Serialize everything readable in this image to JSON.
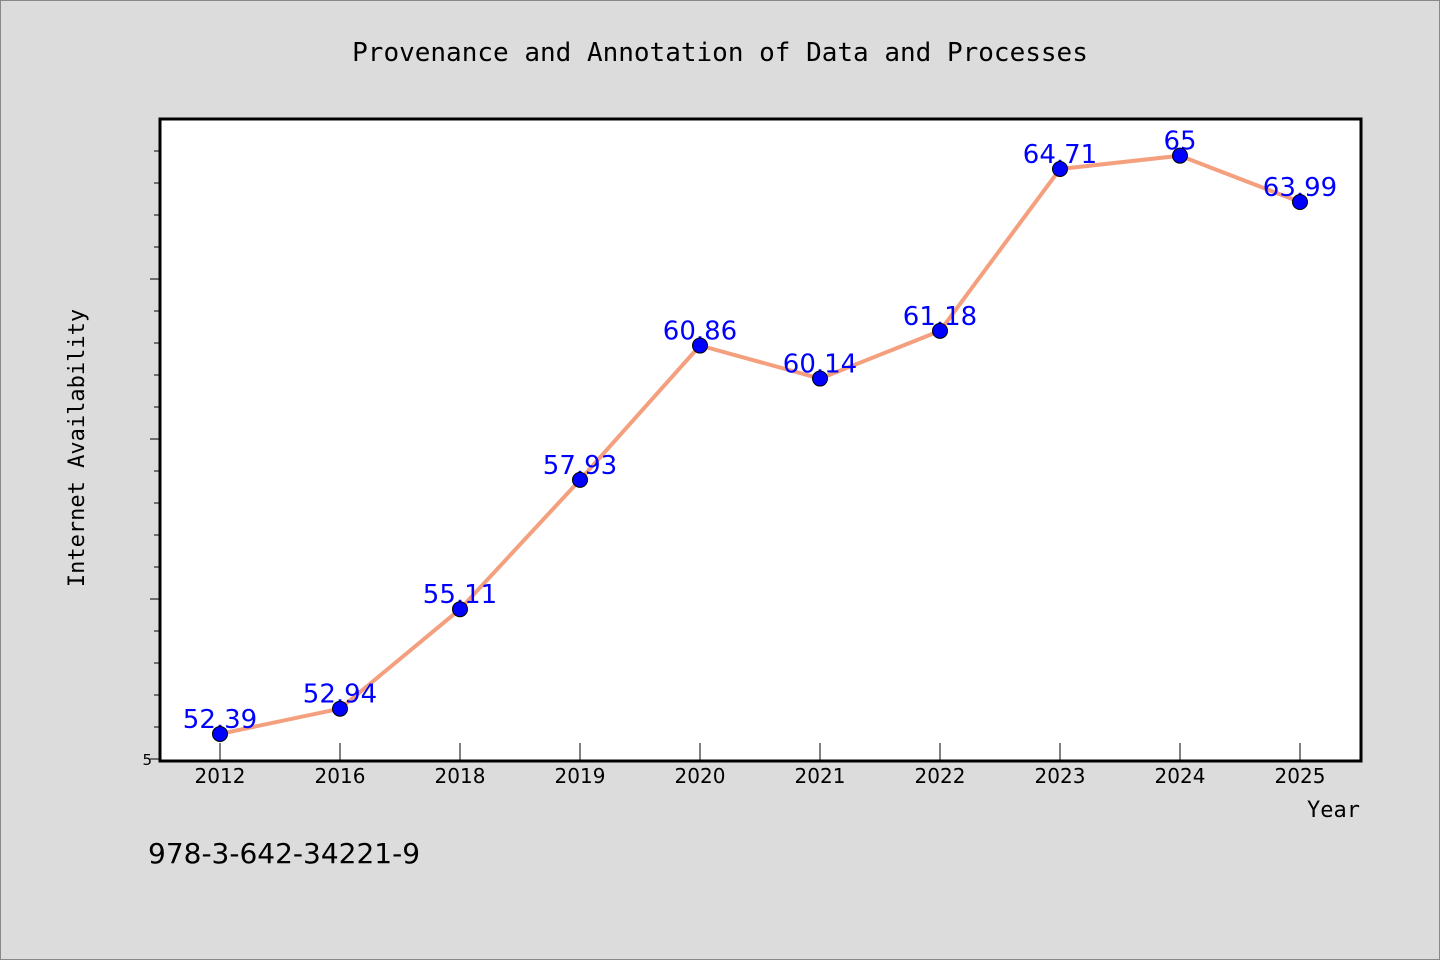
{
  "chart_data": {
    "type": "line",
    "title": "Provenance and Annotation of Data and Processes",
    "xlabel": "Year",
    "ylabel": "Internet Availability",
    "categories": [
      "2012",
      "2016",
      "2018",
      "2019",
      "2020",
      "2021",
      "2022",
      "2023",
      "2024",
      "2025"
    ],
    "series": [
      {
        "values": [
          52.39,
          52.94,
          55.11,
          57.93,
          60.86,
          60.14,
          61.18,
          64.71,
          65,
          63.99
        ],
        "labels": [
          "52.39",
          "52.94",
          "55.11",
          "57.93",
          "60.86",
          "60.14",
          "61.18",
          "64.71",
          "65",
          "63.99"
        ],
        "line_color": "#f4a07e",
        "marker_color": "#0000ff",
        "label_color": "#0000ff"
      }
    ],
    "ytick_labels": [
      "5"
    ],
    "ylim": [
      51.8,
      65.8
    ],
    "grid": false,
    "legend": "none",
    "background_color": "#dcdcdc",
    "plot_background_color": "#ffffff"
  },
  "footer": {
    "text": "978-3-642-34221-9"
  }
}
